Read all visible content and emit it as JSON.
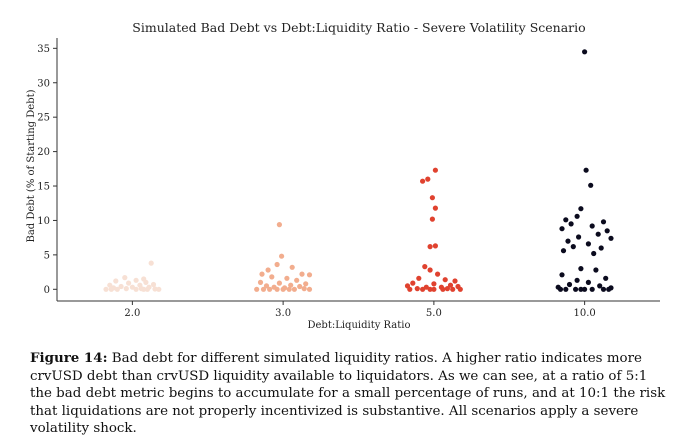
{
  "chart_data": {
    "type": "scatter",
    "title": "Simulated Bad Debt vs Debt:Liquidity Ratio - Severe Volatility Scenario",
    "xlabel": "Debt:Liquidity Ratio",
    "ylabel": "Bad Debt (% of Starting Debt)",
    "ylim": [
      -1.7,
      36.5
    ],
    "yticks": [
      0,
      5,
      10,
      15,
      20,
      25,
      30,
      35
    ],
    "grid": false,
    "categories": [
      "2.0",
      "3.0",
      "5.0",
      "10.0"
    ],
    "series": [
      {
        "category": "2.0",
        "color": "#f7e0d4",
        "points": [
          {
            "x": 0.25,
            "y": 3.8
          },
          {
            "x": -0.1,
            "y": 1.7
          },
          {
            "x": 0.15,
            "y": 1.5
          },
          {
            "x": -0.22,
            "y": 1.2
          },
          {
            "x": 0.05,
            "y": 1.3
          },
          {
            "x": 0.18,
            "y": 1.0
          },
          {
            "x": -0.05,
            "y": 0.9
          },
          {
            "x": 0.28,
            "y": 0.7
          },
          {
            "x": -0.3,
            "y": 0.6
          },
          {
            "x": 0.1,
            "y": 0.6
          },
          {
            "x": -0.15,
            "y": 0.4
          },
          {
            "x": 0.22,
            "y": 0.3
          },
          {
            "x": -0.25,
            "y": 0.2
          },
          {
            "x": 0.0,
            "y": 0.3
          },
          {
            "x": -0.08,
            "y": 0.1
          },
          {
            "x": 0.12,
            "y": 0.1
          },
          {
            "x": 0.3,
            "y": 0.05
          },
          {
            "x": -0.35,
            "y": 0.0
          },
          {
            "x": -0.2,
            "y": 0.0
          },
          {
            "x": 0.05,
            "y": 0.0
          },
          {
            "x": 0.2,
            "y": 0.0
          },
          {
            "x": 0.35,
            "y": 0.0
          },
          {
            "x": -0.28,
            "y": 0.0
          },
          {
            "x": 0.15,
            "y": 0.0
          }
        ]
      },
      {
        "category": "3.0",
        "color": "#f2ad8e",
        "points": [
          {
            "x": -0.05,
            "y": 9.4
          },
          {
            "x": -0.02,
            "y": 4.8
          },
          {
            "x": -0.08,
            "y": 3.6
          },
          {
            "x": 0.12,
            "y": 3.2
          },
          {
            "x": -0.2,
            "y": 2.8
          },
          {
            "x": 0.25,
            "y": 2.2
          },
          {
            "x": -0.28,
            "y": 2.2
          },
          {
            "x": 0.35,
            "y": 2.1
          },
          {
            "x": -0.15,
            "y": 1.8
          },
          {
            "x": 0.05,
            "y": 1.6
          },
          {
            "x": 0.18,
            "y": 1.3
          },
          {
            "x": -0.3,
            "y": 1.0
          },
          {
            "x": -0.05,
            "y": 0.9
          },
          {
            "x": 0.3,
            "y": 0.8
          },
          {
            "x": 0.1,
            "y": 0.6
          },
          {
            "x": -0.22,
            "y": 0.5
          },
          {
            "x": 0.22,
            "y": 0.4
          },
          {
            "x": -0.12,
            "y": 0.3
          },
          {
            "x": 0.02,
            "y": 0.2
          },
          {
            "x": 0.28,
            "y": 0.1
          },
          {
            "x": -0.35,
            "y": 0.0
          },
          {
            "x": -0.18,
            "y": 0.0
          },
          {
            "x": 0.0,
            "y": 0.0
          },
          {
            "x": 0.15,
            "y": 0.0
          },
          {
            "x": 0.35,
            "y": 0.0
          },
          {
            "x": -0.26,
            "y": 0.0
          },
          {
            "x": 0.08,
            "y": 0.0
          },
          {
            "x": -0.08,
            "y": 0.0
          }
        ]
      },
      {
        "category": "5.0",
        "color": "#e0422f",
        "points": [
          {
            "x": 0.02,
            "y": 17.3
          },
          {
            "x": -0.08,
            "y": 16.0
          },
          {
            "x": -0.15,
            "y": 15.7
          },
          {
            "x": -0.02,
            "y": 13.3
          },
          {
            "x": 0.02,
            "y": 11.8
          },
          {
            "x": -0.02,
            "y": 10.2
          },
          {
            "x": 0.02,
            "y": 6.3
          },
          {
            "x": -0.05,
            "y": 6.2
          },
          {
            "x": -0.12,
            "y": 3.3
          },
          {
            "x": -0.05,
            "y": 2.8
          },
          {
            "x": 0.05,
            "y": 2.2
          },
          {
            "x": -0.2,
            "y": 1.6
          },
          {
            "x": 0.15,
            "y": 1.4
          },
          {
            "x": 0.28,
            "y": 1.2
          },
          {
            "x": -0.28,
            "y": 0.9
          },
          {
            "x": 0.0,
            "y": 0.8
          },
          {
            "x": 0.22,
            "y": 0.6
          },
          {
            "x": -0.35,
            "y": 0.5
          },
          {
            "x": 0.32,
            "y": 0.4
          },
          {
            "x": -0.1,
            "y": 0.3
          },
          {
            "x": 0.1,
            "y": 0.3
          },
          {
            "x": -0.22,
            "y": 0.1
          },
          {
            "x": 0.18,
            "y": 0.1
          },
          {
            "x": -0.32,
            "y": 0.0
          },
          {
            "x": -0.15,
            "y": 0.0
          },
          {
            "x": 0.0,
            "y": 0.0
          },
          {
            "x": 0.12,
            "y": 0.0
          },
          {
            "x": 0.25,
            "y": 0.0
          },
          {
            "x": 0.35,
            "y": 0.0
          },
          {
            "x": -0.05,
            "y": 0.0
          }
        ]
      },
      {
        "category": "10.0",
        "color": "#0b0b1e",
        "points": [
          {
            "x": 0.0,
            "y": 34.5
          },
          {
            "x": 0.02,
            "y": 17.3
          },
          {
            "x": 0.08,
            "y": 15.1
          },
          {
            "x": -0.05,
            "y": 11.7
          },
          {
            "x": -0.1,
            "y": 10.6
          },
          {
            "x": -0.25,
            "y": 10.1
          },
          {
            "x": 0.25,
            "y": 9.8
          },
          {
            "x": -0.18,
            "y": 9.5
          },
          {
            "x": 0.1,
            "y": 9.2
          },
          {
            "x": -0.3,
            "y": 8.8
          },
          {
            "x": 0.3,
            "y": 8.5
          },
          {
            "x": 0.18,
            "y": 8.0
          },
          {
            "x": -0.08,
            "y": 7.6
          },
          {
            "x": 0.35,
            "y": 7.4
          },
          {
            "x": -0.22,
            "y": 7.0
          },
          {
            "x": 0.05,
            "y": 6.6
          },
          {
            "x": -0.15,
            "y": 6.2
          },
          {
            "x": 0.22,
            "y": 6.0
          },
          {
            "x": -0.28,
            "y": 5.6
          },
          {
            "x": 0.12,
            "y": 5.2
          },
          {
            "x": -0.05,
            "y": 3.0
          },
          {
            "x": 0.15,
            "y": 2.8
          },
          {
            "x": -0.3,
            "y": 2.1
          },
          {
            "x": 0.28,
            "y": 1.6
          },
          {
            "x": -0.1,
            "y": 1.3
          },
          {
            "x": 0.05,
            "y": 1.0
          },
          {
            "x": -0.2,
            "y": 0.7
          },
          {
            "x": 0.2,
            "y": 0.5
          },
          {
            "x": -0.35,
            "y": 0.3
          },
          {
            "x": 0.35,
            "y": 0.2
          },
          {
            "x": -0.25,
            "y": 0.0
          },
          {
            "x": -0.12,
            "y": 0.0
          },
          {
            "x": 0.0,
            "y": 0.0
          },
          {
            "x": 0.1,
            "y": 0.0
          },
          {
            "x": 0.25,
            "y": 0.0
          },
          {
            "x": -0.05,
            "y": 0.0
          },
          {
            "x": 0.32,
            "y": 0.0
          },
          {
            "x": -0.32,
            "y": 0.0
          }
        ]
      }
    ]
  },
  "caption": {
    "label": "Figure 14:",
    "text": " Bad debt for different simulated liquidity ratios. A higher ratio indicates more crvUSD debt than crvUSD liquidity available to liquidators. As we can see, at a ratio of 5:1 the bad debt metric begins to accumulate for a small percentage of runs, and at 10:1 the risk that liquidations are not properly incentivized is substantive. All scenarios apply a severe volatility shock."
  }
}
